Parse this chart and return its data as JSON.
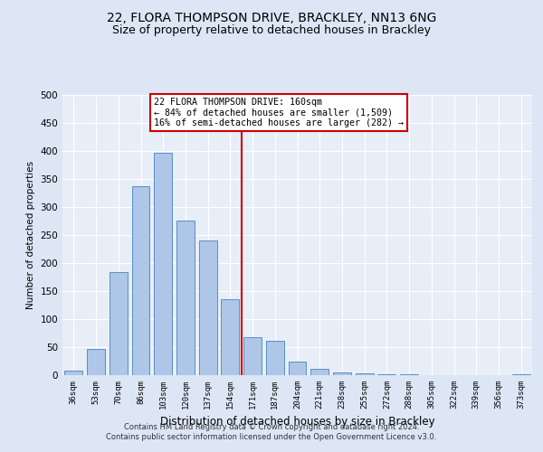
{
  "title1": "22, FLORA THOMPSON DRIVE, BRACKLEY, NN13 6NG",
  "title2": "Size of property relative to detached houses in Brackley",
  "xlabel": "Distribution of detached houses by size in Brackley",
  "ylabel": "Number of detached properties",
  "categories": [
    "36sqm",
    "53sqm",
    "70sqm",
    "86sqm",
    "103sqm",
    "120sqm",
    "137sqm",
    "154sqm",
    "171sqm",
    "187sqm",
    "204sqm",
    "221sqm",
    "238sqm",
    "255sqm",
    "272sqm",
    "288sqm",
    "305sqm",
    "322sqm",
    "339sqm",
    "356sqm",
    "373sqm"
  ],
  "values": [
    8,
    46,
    184,
    337,
    397,
    276,
    240,
    135,
    67,
    61,
    25,
    11,
    5,
    3,
    2,
    1,
    0,
    0,
    0,
    0,
    2
  ],
  "bar_color": "#aec6e8",
  "bar_edge_color": "#5a8fc2",
  "vline_index": 8,
  "vline_color": "#cc0000",
  "annotation_text": "22 FLORA THOMPSON DRIVE: 160sqm\n← 84% of detached houses are smaller (1,509)\n16% of semi-detached houses are larger (282) →",
  "annotation_box_edgecolor": "#cc0000",
  "footer1": "Contains HM Land Registry data © Crown copyright and database right 2024.",
  "footer2": "Contains public sector information licensed under the Open Government Licence v3.0.",
  "ylim": [
    0,
    500
  ],
  "yticks": [
    0,
    50,
    100,
    150,
    200,
    250,
    300,
    350,
    400,
    450,
    500
  ],
  "bg_color": "#e8eef8",
  "grid_color": "#ffffff",
  "title_fontsize": 10,
  "subtitle_fontsize": 9,
  "bar_width": 0.8
}
